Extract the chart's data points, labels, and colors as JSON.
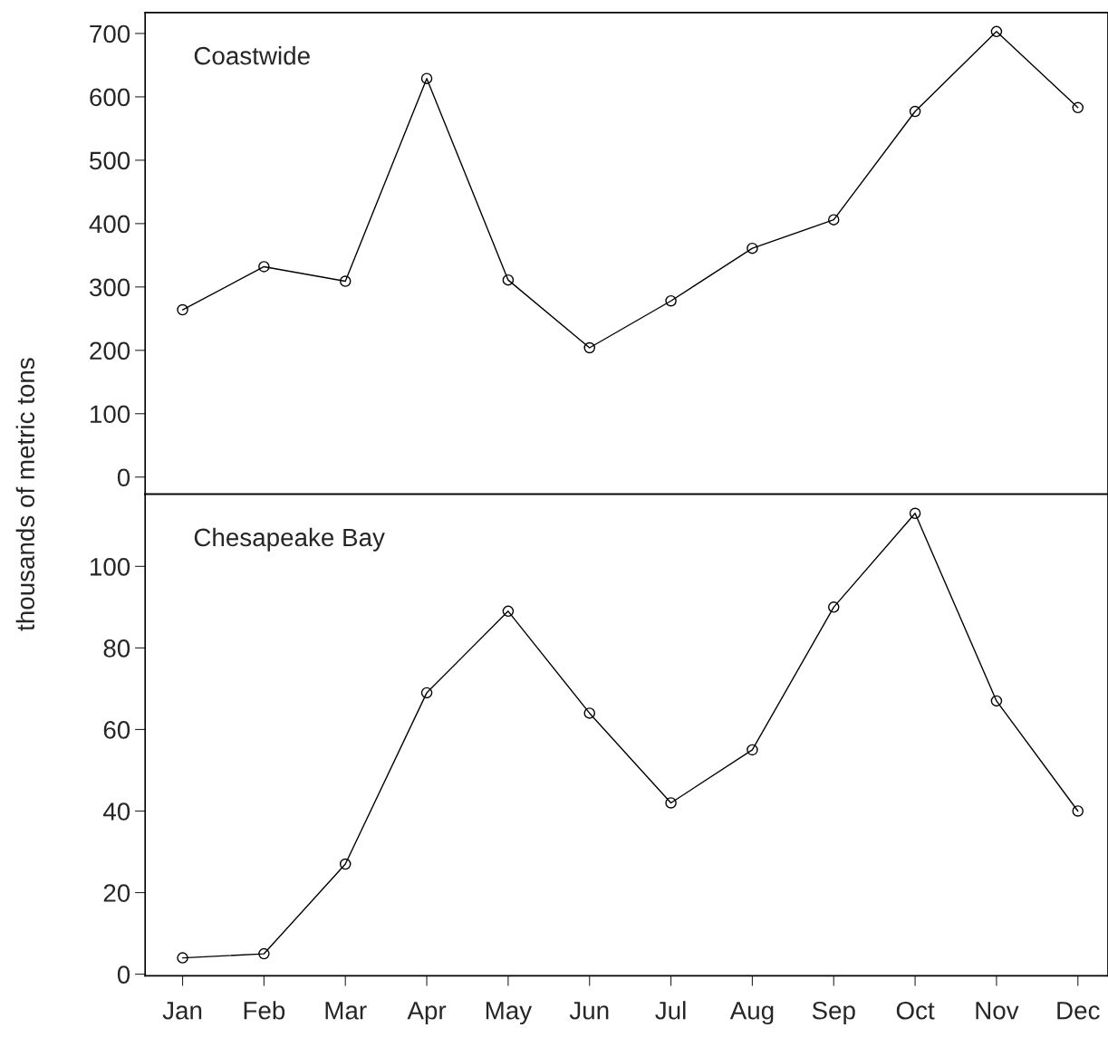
{
  "chart_data": [
    {
      "type": "line",
      "title": "Coastwide",
      "ylabel": "thousands of metric tons",
      "categories": [
        null,
        null,
        null,
        null,
        null,
        null,
        null,
        null,
        null,
        null,
        null,
        null
      ],
      "series": [
        {
          "color": "#000000",
          "values": [
            264,
            332,
            309,
            629,
            311,
            204,
            278,
            361,
            406,
            577,
            703,
            583
          ]
        }
      ],
      "ylim": [
        -27,
        733
      ],
      "yticks": [
        0,
        100,
        200,
        300,
        400,
        500,
        600,
        700
      ],
      "marker": "circle",
      "line_style": "solid",
      "grid": false,
      "legend": false,
      "tick_labels": "y"
    },
    {
      "type": "line",
      "title": "Chesapeake Bay",
      "categories": [
        "Jan",
        "Feb",
        "Mar",
        "Apr",
        "May",
        "Jun",
        "Jul",
        "Aug",
        "Sep",
        "Oct",
        "Nov",
        "Dec"
      ],
      "series": [
        {
          "color": "#000000",
          "values": [
            4,
            5,
            27,
            69,
            89,
            64,
            42,
            55,
            90,
            113,
            67,
            40
          ]
        }
      ],
      "ylim": [
        -0.4,
        117.7
      ],
      "yticks": [
        0,
        20,
        40,
        60,
        80,
        100
      ],
      "marker": "circle",
      "line_style": "solid",
      "grid": false,
      "legend": false
    }
  ]
}
